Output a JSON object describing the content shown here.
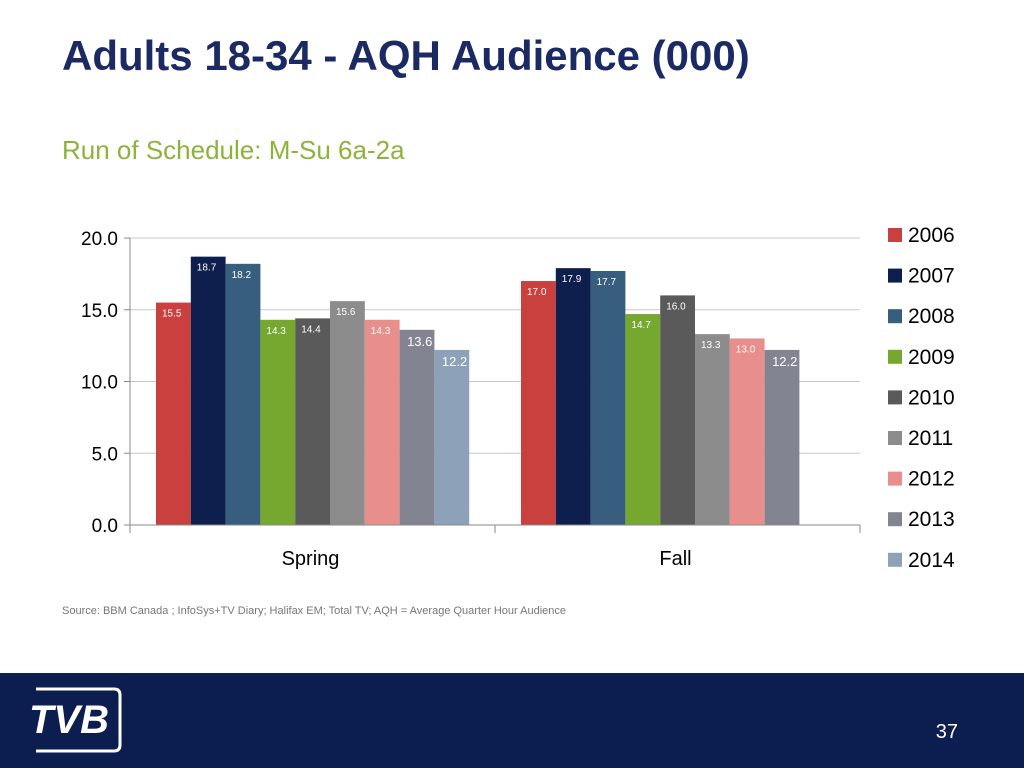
{
  "slide": {
    "title": "Adults 18-34 - AQH Audience (000)",
    "subtitle": "Run of Schedule: M-Su 6a-2a",
    "source": "Source: BBM Canada ; InfoSys+TV Diary; Halifax EM; Total TV; AQH = Average Quarter Hour Audience",
    "page_number": "37",
    "logo_text": "TVB"
  },
  "chart_data": {
    "type": "bar",
    "title": "",
    "xlabel": "",
    "ylabel": "",
    "categories": [
      "Spring",
      "Fall"
    ],
    "ylim": [
      0,
      20
    ],
    "yticks": [
      "20.0",
      "15.0",
      "10.0",
      "5.0",
      "0.0"
    ],
    "ytick_values": [
      20,
      15,
      10,
      5,
      0
    ],
    "grid": true,
    "legend_position": "right",
    "series": [
      {
        "name": "2006",
        "color": "#c9403e",
        "values": [
          15.5,
          17.0
        ],
        "labels": [
          "15.5",
          "17.0"
        ]
      },
      {
        "name": "2007",
        "color": "#0f1f4d",
        "values": [
          18.7,
          17.9
        ],
        "labels": [
          "18.7",
          "17.9"
        ]
      },
      {
        "name": "2008",
        "color": "#375d7f",
        "values": [
          18.2,
          17.7
        ],
        "labels": [
          "18.2",
          "17.7"
        ]
      },
      {
        "name": "2009",
        "color": "#76a830",
        "values": [
          14.3,
          14.7
        ],
        "labels": [
          "14.3",
          "14.7"
        ]
      },
      {
        "name": "2010",
        "color": "#5a5a5a",
        "values": [
          14.4,
          16.0
        ],
        "labels": [
          "14.4",
          "16.0"
        ]
      },
      {
        "name": "2011",
        "color": "#8c8c8c",
        "values": [
          15.6,
          13.3
        ],
        "labels": [
          "15.6",
          "13.3"
        ]
      },
      {
        "name": "2012",
        "color": "#e88f8d",
        "values": [
          14.3,
          13.0
        ],
        "labels": [
          "14.3",
          "13.0"
        ]
      },
      {
        "name": "2013",
        "color": "#828591",
        "values": [
          13.6,
          12.2
        ],
        "labels": [
          "13.6",
          "12.2"
        ]
      },
      {
        "name": "2014",
        "color": "#8da1b8",
        "values": [
          12.2,
          null
        ],
        "labels": [
          "12.2",
          ""
        ]
      }
    ]
  }
}
